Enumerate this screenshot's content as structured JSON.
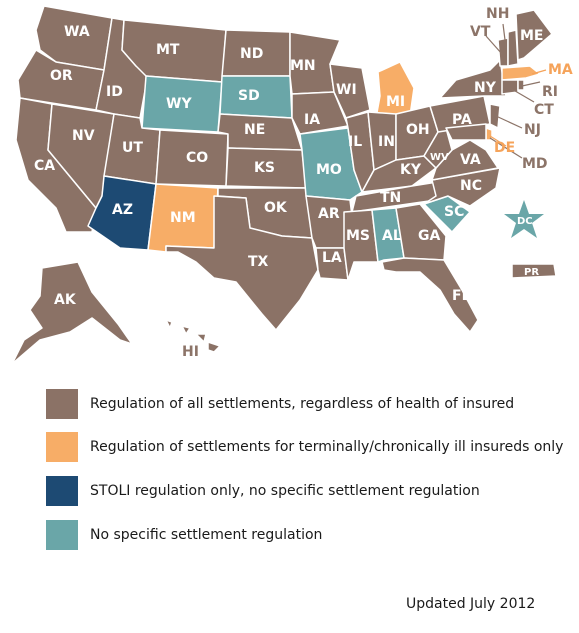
{
  "colors": {
    "all_settlements": "#8b7266",
    "terminally_ill_only": "#f7ad67",
    "stoli_only": "#1d4a73",
    "no_regulation": "#6aa6a8",
    "label_brown": "#8c7468",
    "label_orange": "#f5a35a"
  },
  "map": {
    "state_labels": {
      "WA": "WA",
      "OR": "OR",
      "CA": "CA",
      "NV": "NV",
      "ID": "ID",
      "MT": "MT",
      "WY": "WY",
      "UT": "UT",
      "AZ": "AZ",
      "CO": "CO",
      "NM": "NM",
      "ND": "ND",
      "SD": "SD",
      "NE": "NE",
      "KS": "KS",
      "OK": "OK",
      "TX": "TX",
      "MN": "MN",
      "IA": "IA",
      "MO": "MO",
      "AR": "AR",
      "LA": "LA",
      "WI": "WI",
      "IL": "IL",
      "MI": "MI",
      "IN": "IN",
      "OH": "OH",
      "KY": "KY",
      "TN": "TN",
      "MS": "MS",
      "AL": "AL",
      "GA": "GA",
      "FL": "FL",
      "SC": "SC",
      "NC": "NC",
      "VA": "VA",
      "WV": "WV",
      "PA": "PA",
      "NY": "NY",
      "ME": "ME",
      "NH": "NH",
      "VT": "VT",
      "MA": "MA",
      "RI": "RI",
      "CT": "CT",
      "NJ": "NJ",
      "DE": "DE",
      "MD": "MD",
      "DC": "DC",
      "AK": "AK",
      "HI": "HI",
      "PR": "PR"
    }
  },
  "legend": [
    {
      "label": "Regulation  of all settlements, regardless of  health of insured",
      "color": "#8b7266"
    },
    {
      "label": "Regulation  of settlements for terminally/chronically ill insureds only",
      "color": "#f7ad67"
    },
    {
      "label": "STOLI regulation only, no specific settlement regulation",
      "color": "#1d4a73"
    },
    {
      "label": "No specific settlement regulation",
      "color": "#6aa6a8"
    }
  ],
  "footer": {
    "updated": "Updated July 2012"
  }
}
